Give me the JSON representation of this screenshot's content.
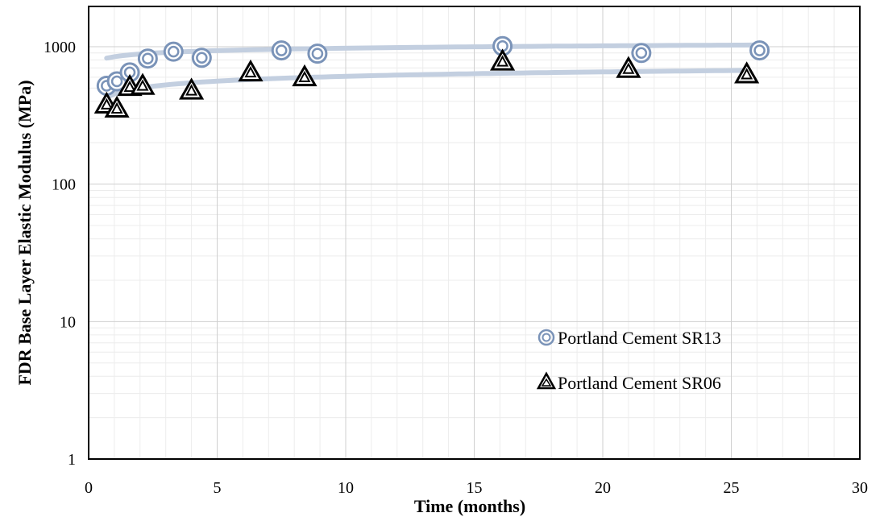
{
  "chart_data": {
    "type": "scatter",
    "title": "",
    "xlabel": "Time (months)",
    "ylabel": "FDR Base Layer Elastic Modulus (MPa)",
    "xlim": [
      0,
      30
    ],
    "ylim": [
      1,
      1000
    ],
    "y_scale": "log",
    "x_ticks": [
      "0",
      "5",
      "10",
      "15",
      "20",
      "25",
      "30"
    ],
    "y_ticks": [
      "1",
      "10",
      "100",
      "1000"
    ],
    "grid": true,
    "legend_position": "bottom-right",
    "series": [
      {
        "name": "Portland Cement SR13",
        "marker": "double-circle",
        "color": "#7a93b8",
        "x": [
          0.7,
          1.1,
          1.6,
          2.3,
          3.3,
          4.4,
          7.5,
          8.9,
          16.1,
          21.5,
          26.1
        ],
        "y": [
          520,
          560,
          650,
          820,
          920,
          830,
          940,
          890,
          1010,
          900,
          940
        ],
        "trend": {
          "type": "log",
          "color": "#c3cfe0",
          "x": [
            0.7,
            26.1
          ],
          "coef": [
            56.2,
            846
          ]
        }
      },
      {
        "name": "Portland Cement SR06",
        "marker": "double-triangle",
        "color": "#000000",
        "x": [
          0.7,
          1.1,
          1.6,
          2.1,
          4.0,
          6.3,
          8.4,
          16.1,
          21.0,
          25.6
        ],
        "y": [
          380,
          355,
          510,
          520,
          480,
          650,
          600,
          780,
          690,
          630
        ],
        "trend": {
          "type": "log",
          "color": "#c3cfe0",
          "x": [
            0.7,
            25.6
          ],
          "coef": [
            67.7,
            453
          ]
        }
      }
    ]
  }
}
